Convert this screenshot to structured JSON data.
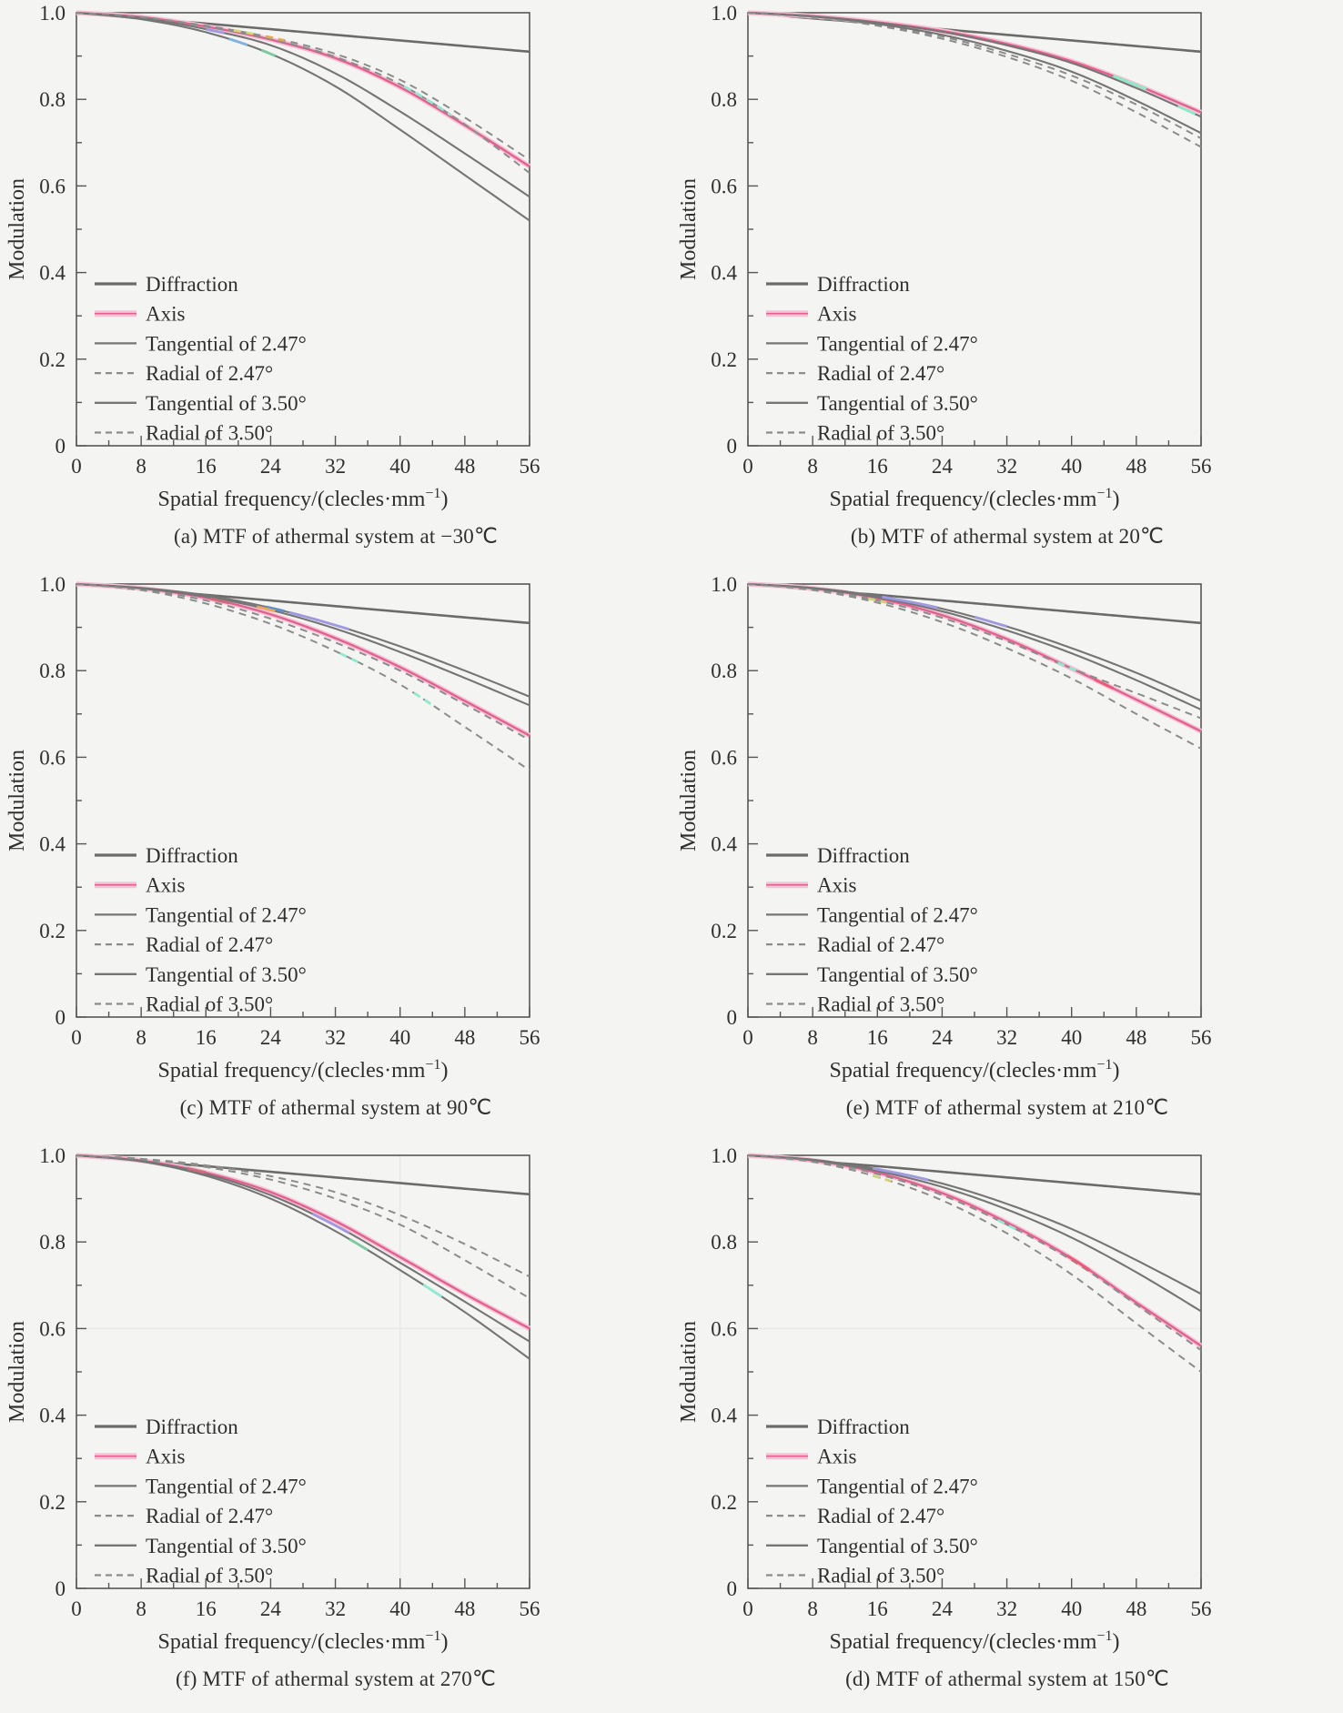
{
  "page": {
    "background": "#f4f4f2",
    "figure_type": "MTF curves of athermal infrared system at six temperatures"
  },
  "shared": {
    "ylabel": "Modulation",
    "xlabel_main": "Spatial frequency/(clecles·mm",
    "xlabel_sup": "−1",
    "xlabel_close": ")",
    "x_ticks": [
      0,
      8,
      16,
      24,
      32,
      40,
      48,
      56
    ],
    "x_minor_step": 4,
    "y_tick_labels": [
      "0",
      "0.2",
      "0.4",
      "0.6",
      "0.8",
      "1.0"
    ],
    "y_tick_values": [
      0,
      0.2,
      0.4,
      0.6,
      0.8,
      1.0
    ],
    "y_minor_step": 0.1,
    "xlim": [
      0,
      56
    ],
    "ylim": [
      0,
      1
    ],
    "legend_position": "lower-left-inside",
    "grid_default": "off",
    "colors": {
      "frame": "#565656",
      "gridline": "#e9e9e7",
      "diffraction_gray": "#6b6b6b",
      "curve_gray": "#757575",
      "dashed_gray": "#8c8c8c",
      "axis_pink": "#e0608e",
      "axis_halo_pink": "#f6c2d6",
      "text": "#2f2f2f"
    }
  },
  "chart_data": [
    {
      "id": "a",
      "type": "line",
      "caption": "(a) MTF of athermal system at −30℃",
      "temperature": "−30℃",
      "x": [
        0,
        8,
        16,
        24,
        32,
        40,
        48,
        56
      ],
      "series": [
        {
          "name": "Diffraction",
          "style": "solid",
          "color": "#6b6b6b",
          "width": 2.6,
          "values": [
            1.0,
            0.987,
            0.975,
            0.962,
            0.949,
            0.936,
            0.923,
            0.91
          ]
        },
        {
          "name": "Axis",
          "style": "solid",
          "color": "#e0608e",
          "halo": "#f6c2d6",
          "width": 2.3,
          "values": [
            1.0,
            0.99,
            0.968,
            0.938,
            0.895,
            0.828,
            0.74,
            0.645
          ]
        },
        {
          "name": "Tangential of 2.47°",
          "style": "solid",
          "color": "#757575",
          "width": 2.1,
          "values": [
            1.0,
            0.988,
            0.962,
            0.925,
            0.86,
            0.772,
            0.675,
            0.575
          ]
        },
        {
          "name": "Radial of 2.47°",
          "style": "dashed",
          "color": "#8c8c8c",
          "width": 2.0,
          "values": [
            1.0,
            0.99,
            0.97,
            0.943,
            0.905,
            0.845,
            0.758,
            0.66
          ]
        },
        {
          "name": "Tangential of 3.50°",
          "style": "solid",
          "color": "#757575",
          "width": 2.1,
          "values": [
            1.0,
            0.985,
            0.955,
            0.905,
            0.83,
            0.73,
            0.625,
            0.52
          ]
        },
        {
          "name": "Radial of 3.50°",
          "style": "dashed",
          "color": "#8c8c8c",
          "width": 2.0,
          "values": [
            1.0,
            0.99,
            0.968,
            0.939,
            0.898,
            0.835,
            0.742,
            0.63
          ]
        }
      ],
      "gridlines": {
        "x": [],
        "y": []
      },
      "accents": [
        {
          "series": 3,
          "from": 0.35,
          "to": 0.4,
          "color": "#d6d877"
        },
        {
          "series": 2,
          "from": 0.29,
          "to": 0.33,
          "color": "#9f9ae0"
        },
        {
          "series": 3,
          "from": 0.42,
          "to": 0.46,
          "color": "#e8a85a"
        },
        {
          "series": 4,
          "from": 0.34,
          "to": 0.38,
          "color": "#7fb2e0"
        },
        {
          "series": 4,
          "from": 0.41,
          "to": 0.44,
          "color": "#7cc9a2"
        },
        {
          "series": 5,
          "from": 0.72,
          "to": 0.82,
          "color": "#8fe8d0"
        }
      ]
    },
    {
      "id": "b",
      "type": "line",
      "caption": "(b) MTF of athermal system at 20℃",
      "temperature": "20℃",
      "x": [
        0,
        8,
        16,
        24,
        32,
        40,
        48,
        56
      ],
      "series": [
        {
          "name": "Diffraction",
          "style": "solid",
          "color": "#6b6b6b",
          "width": 2.6,
          "values": [
            1.0,
            0.987,
            0.975,
            0.962,
            0.949,
            0.936,
            0.923,
            0.91
          ]
        },
        {
          "name": "Axis",
          "style": "solid",
          "color": "#e0608e",
          "halo": "#f6c2d6",
          "width": 2.3,
          "values": [
            1.0,
            0.992,
            0.978,
            0.958,
            0.928,
            0.888,
            0.833,
            0.77
          ]
        },
        {
          "name": "Tangential of 2.47°",
          "style": "solid",
          "color": "#757575",
          "width": 2.1,
          "values": [
            1.0,
            0.992,
            0.977,
            0.956,
            0.925,
            0.884,
            0.826,
            0.76
          ]
        },
        {
          "name": "Radial of 2.47°",
          "style": "dashed",
          "color": "#8c8c8c",
          "width": 2.0,
          "values": [
            1.0,
            0.99,
            0.972,
            0.945,
            0.905,
            0.855,
            0.788,
            0.71
          ]
        },
        {
          "name": "Tangential of 3.50°",
          "style": "solid",
          "color": "#757575",
          "width": 2.1,
          "values": [
            1.0,
            0.991,
            0.974,
            0.949,
            0.912,
            0.864,
            0.797,
            0.722
          ]
        },
        {
          "name": "Radial of 3.50°",
          "style": "dashed",
          "color": "#8c8c8c",
          "width": 2.0,
          "values": [
            1.0,
            0.989,
            0.97,
            0.94,
            0.898,
            0.843,
            0.77,
            0.69
          ]
        }
      ],
      "gridlines": {
        "x": [],
        "y": []
      },
      "accents": [
        {
          "series": 1,
          "from": 0.8,
          "to": 0.87,
          "color": "#8fe8c8"
        },
        {
          "series": 2,
          "from": 0.93,
          "to": 0.97,
          "color": "#8fe8c8"
        }
      ]
    },
    {
      "id": "c",
      "type": "line",
      "caption": "(c) MTF of athermal system at 90℃",
      "temperature": "90℃",
      "x": [
        0,
        8,
        16,
        24,
        32,
        40,
        48,
        56
      ],
      "series": [
        {
          "name": "Diffraction",
          "style": "solid",
          "color": "#6b6b6b",
          "width": 2.6,
          "values": [
            1.0,
            0.987,
            0.975,
            0.962,
            0.949,
            0.936,
            0.923,
            0.91
          ]
        },
        {
          "name": "Axis",
          "style": "solid",
          "color": "#e0608e",
          "halo": "#f6c2d6",
          "width": 2.3,
          "values": [
            1.0,
            0.99,
            0.968,
            0.93,
            0.875,
            0.808,
            0.73,
            0.65
          ]
        },
        {
          "name": "Tangential of 2.47°",
          "style": "solid",
          "color": "#757575",
          "width": 2.1,
          "values": [
            1.0,
            0.991,
            0.974,
            0.945,
            0.905,
            0.856,
            0.8,
            0.74
          ]
        },
        {
          "name": "Radial of 2.47°",
          "style": "dashed",
          "color": "#8c8c8c",
          "width": 2.0,
          "values": [
            1.0,
            0.988,
            0.962,
            0.92,
            0.865,
            0.8,
            0.722,
            0.64
          ]
        },
        {
          "name": "Tangential of 3.50°",
          "style": "solid",
          "color": "#757575",
          "width": 2.1,
          "values": [
            1.0,
            0.99,
            0.971,
            0.94,
            0.897,
            0.843,
            0.783,
            0.72
          ]
        },
        {
          "name": "Radial of 3.50°",
          "style": "dashed",
          "color": "#8c8c8c",
          "width": 2.0,
          "values": [
            1.0,
            0.986,
            0.955,
            0.908,
            0.845,
            0.768,
            0.67,
            0.57
          ]
        }
      ],
      "gridlines": {
        "x": [],
        "y": []
      },
      "accents": [
        {
          "series": 2,
          "from": 0.47,
          "to": 0.6,
          "color": "#9f9ae0"
        },
        {
          "series": 2,
          "from": 0.42,
          "to": 0.46,
          "color": "#5b8fd0"
        },
        {
          "series": 4,
          "from": 0.4,
          "to": 0.44,
          "color": "#e8a85a"
        },
        {
          "series": 5,
          "from": 0.58,
          "to": 0.62,
          "color": "#8fe8d0"
        },
        {
          "series": 5,
          "from": 0.74,
          "to": 0.78,
          "color": "#8fe8d0"
        },
        {
          "series": 1,
          "from": 0.3,
          "to": 0.34,
          "color": "#d06a7c"
        }
      ]
    },
    {
      "id": "e",
      "type": "line",
      "caption": "(e) MTF of athermal system at 210℃",
      "temperature": "210℃",
      "x": [
        0,
        8,
        16,
        24,
        32,
        40,
        48,
        56
      ],
      "series": [
        {
          "name": "Diffraction",
          "style": "solid",
          "color": "#6b6b6b",
          "width": 2.6,
          "values": [
            1.0,
            0.987,
            0.975,
            0.962,
            0.949,
            0.936,
            0.923,
            0.91
          ]
        },
        {
          "name": "Axis",
          "style": "solid",
          "color": "#e0608e",
          "halo": "#f6c2d6",
          "width": 2.3,
          "values": [
            1.0,
            0.99,
            0.967,
            0.928,
            0.873,
            0.805,
            0.733,
            0.66
          ]
        },
        {
          "name": "Tangential of 2.47°",
          "style": "solid",
          "color": "#757575",
          "width": 2.1,
          "values": [
            1.0,
            0.991,
            0.972,
            0.943,
            0.902,
            0.852,
            0.795,
            0.73
          ]
        },
        {
          "name": "Radial of 2.47°",
          "style": "dashed",
          "color": "#8c8c8c",
          "width": 2.0,
          "values": [
            1.0,
            0.988,
            0.962,
            0.922,
            0.868,
            0.805,
            0.748,
            0.69
          ]
        },
        {
          "name": "Tangential of 3.50°",
          "style": "solid",
          "color": "#757575",
          "width": 2.1,
          "values": [
            1.0,
            0.99,
            0.969,
            0.937,
            0.893,
            0.84,
            0.778,
            0.71
          ]
        },
        {
          "name": "Radial of 3.50°",
          "style": "dashed",
          "color": "#8c8c8c",
          "width": 2.0,
          "values": [
            1.0,
            0.986,
            0.957,
            0.912,
            0.852,
            0.782,
            0.7,
            0.62
          ]
        }
      ],
      "gridlines": {
        "x": [],
        "y": []
      },
      "accents": [
        {
          "series": 2,
          "from": 0.3,
          "to": 0.42,
          "color": "#9f9ae0"
        },
        {
          "series": 2,
          "from": 0.5,
          "to": 0.57,
          "color": "#9f9ae0"
        },
        {
          "series": 3,
          "from": 0.27,
          "to": 0.31,
          "color": "#cdd37a"
        },
        {
          "series": 3,
          "from": 0.68,
          "to": 0.73,
          "color": "#8fe8d0"
        },
        {
          "series": 1,
          "from": 0.76,
          "to": 0.8,
          "color": "#e85c78"
        }
      ]
    },
    {
      "id": "f",
      "type": "line",
      "caption": "(f) MTF of athermal system at 270℃",
      "temperature": "270℃",
      "x": [
        0,
        8,
        16,
        24,
        32,
        40,
        48,
        56
      ],
      "series": [
        {
          "name": "Diffraction",
          "style": "solid",
          "color": "#6b6b6b",
          "width": 2.6,
          "values": [
            1.0,
            0.987,
            0.975,
            0.962,
            0.949,
            0.936,
            0.923,
            0.91
          ]
        },
        {
          "name": "Axis",
          "style": "solid",
          "color": "#e0608e",
          "halo": "#f6c2d6",
          "width": 2.3,
          "values": [
            1.0,
            0.988,
            0.96,
            0.915,
            0.848,
            0.765,
            0.68,
            0.6
          ]
        },
        {
          "name": "Tangential of 2.47°",
          "style": "solid",
          "color": "#757575",
          "width": 2.1,
          "values": [
            1.0,
            0.987,
            0.957,
            0.908,
            0.838,
            0.752,
            0.662,
            0.57
          ]
        },
        {
          "name": "Radial of 2.47°",
          "style": "dashed",
          "color": "#8c8c8c",
          "width": 2.0,
          "values": [
            1.0,
            0.992,
            0.977,
            0.952,
            0.915,
            0.862,
            0.795,
            0.72
          ]
        },
        {
          "name": "Tangential of 3.50°",
          "style": "solid",
          "color": "#757575",
          "width": 2.1,
          "values": [
            1.0,
            0.986,
            0.953,
            0.9,
            0.825,
            0.735,
            0.638,
            0.53
          ]
        },
        {
          "name": "Radial of 3.50°",
          "style": "dashed",
          "color": "#8c8c8c",
          "width": 2.0,
          "values": [
            1.0,
            0.991,
            0.973,
            0.944,
            0.9,
            0.84,
            0.758,
            0.67
          ]
        }
      ],
      "gridlines": {
        "x": [
          40
        ],
        "y": [
          0.6
        ]
      },
      "accents": [
        {
          "series": 2,
          "from": 0.52,
          "to": 0.6,
          "color": "#9f9ae0"
        },
        {
          "series": 4,
          "from": 0.6,
          "to": 0.64,
          "color": "#7cc9a2"
        },
        {
          "series": 4,
          "from": 0.76,
          "to": 0.8,
          "color": "#8fe8d0"
        },
        {
          "series": 1,
          "from": 0.25,
          "to": 0.29,
          "color": "#d06a7c"
        }
      ]
    },
    {
      "id": "d",
      "type": "line",
      "caption": "(d) MTF of athermal system at 150℃",
      "temperature": "150℃",
      "x": [
        0,
        8,
        16,
        24,
        32,
        40,
        48,
        56
      ],
      "series": [
        {
          "name": "Diffraction",
          "style": "solid",
          "color": "#6b6b6b",
          "width": 2.6,
          "values": [
            1.0,
            0.987,
            0.975,
            0.962,
            0.949,
            0.936,
            0.923,
            0.91
          ]
        },
        {
          "name": "Axis",
          "style": "solid",
          "color": "#e0608e",
          "halo": "#f6c2d6",
          "width": 2.3,
          "values": [
            1.0,
            0.988,
            0.96,
            0.913,
            0.845,
            0.762,
            0.66,
            0.56
          ]
        },
        {
          "name": "Tangential of 2.47°",
          "style": "solid",
          "color": "#757575",
          "width": 2.1,
          "values": [
            1.0,
            0.99,
            0.968,
            0.935,
            0.888,
            0.83,
            0.758,
            0.68
          ]
        },
        {
          "name": "Radial of 2.47°",
          "style": "dashed",
          "color": "#8c8c8c",
          "width": 2.0,
          "values": [
            1.0,
            0.987,
            0.957,
            0.908,
            0.84,
            0.758,
            0.655,
            0.55
          ]
        },
        {
          "name": "Tangential of 3.50°",
          "style": "solid",
          "color": "#757575",
          "width": 2.1,
          "values": [
            1.0,
            0.989,
            0.964,
            0.927,
            0.875,
            0.81,
            0.73,
            0.64
          ]
        },
        {
          "name": "Radial of 3.50°",
          "style": "dashed",
          "color": "#8c8c8c",
          "width": 2.0,
          "values": [
            1.0,
            0.985,
            0.95,
            0.896,
            0.82,
            0.725,
            0.612,
            0.5
          ]
        }
      ],
      "gridlines": {
        "x": [],
        "y": [
          0.6
        ]
      },
      "accents": [
        {
          "series": 2,
          "from": 0.28,
          "to": 0.4,
          "color": "#9f9ae0"
        },
        {
          "series": 3,
          "from": 0.55,
          "to": 0.6,
          "color": "#8fe8d0"
        },
        {
          "series": 5,
          "from": 0.28,
          "to": 0.32,
          "color": "#cdd37a"
        },
        {
          "series": 1,
          "from": 0.7,
          "to": 0.75,
          "color": "#e85c78"
        }
      ]
    }
  ]
}
